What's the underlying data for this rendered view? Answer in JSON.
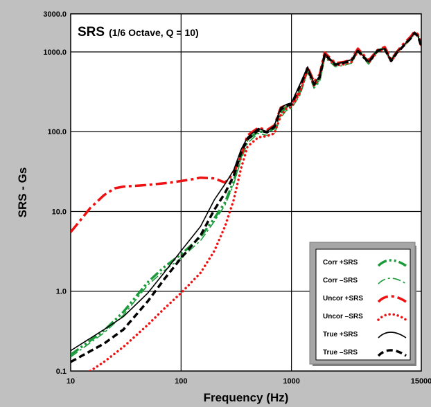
{
  "chart_data": {
    "type": "line",
    "title": "SRS",
    "subtitle": "(1/6 Octave, Q = 10)",
    "xlabel": "Frequency (Hz)",
    "ylabel": "SRS - Gs",
    "x_scale": "log",
    "y_scale": "log",
    "xlim": [
      10,
      15000
    ],
    "ylim": [
      0.1,
      3000
    ],
    "x_ticks": [
      10,
      100,
      1000,
      15000
    ],
    "x_tick_labels": [
      "10",
      "100",
      "1000",
      "15000"
    ],
    "y_ticks": [
      0.1,
      1,
      10,
      100,
      1000,
      3000
    ],
    "y_tick_labels": [
      "0.1",
      "1.0",
      "10.0",
      "100.0",
      "1000.0",
      "3000.0"
    ],
    "grid": true,
    "legend_position": "bottom-right",
    "series": [
      {
        "name": "Corr +SRS",
        "color": "#1a9a3a",
        "style": "dash-dot-dot",
        "weight": "thick",
        "points": [
          [
            10,
            0.16
          ],
          [
            20,
            0.32
          ],
          [
            30,
            0.55
          ],
          [
            50,
            1.3
          ],
          [
            70,
            2.0
          ],
          [
            100,
            2.9
          ],
          [
            150,
            4.8
          ],
          [
            200,
            8.2
          ],
          [
            250,
            13
          ],
          [
            300,
            24
          ],
          [
            350,
            50
          ],
          [
            400,
            80
          ],
          [
            500,
            100
          ],
          [
            600,
            100
          ],
          [
            700,
            110
          ],
          [
            800,
            170
          ],
          [
            900,
            205
          ],
          [
            1000,
            215
          ],
          [
            1200,
            320
          ],
          [
            1400,
            600
          ],
          [
            1600,
            380
          ],
          [
            1800,
            450
          ],
          [
            2000,
            920
          ],
          [
            2500,
            700
          ],
          [
            3000,
            720
          ],
          [
            3500,
            760
          ],
          [
            4000,
            1050
          ],
          [
            5000,
            750
          ],
          [
            6000,
            1050
          ],
          [
            7000,
            1100
          ],
          [
            8000,
            780
          ],
          [
            9000,
            1000
          ],
          [
            10000,
            1150
          ],
          [
            12000,
            1500
          ],
          [
            13000,
            1750
          ],
          [
            14000,
            1600
          ],
          [
            15000,
            1200
          ]
        ]
      },
      {
        "name": "Corr –SRS",
        "color": "#1a9a3a",
        "style": "dash-dot",
        "weight": "thin",
        "points": [
          [
            10,
            0.15
          ],
          [
            20,
            0.3
          ],
          [
            30,
            0.5
          ],
          [
            50,
            1.2
          ],
          [
            70,
            1.8
          ],
          [
            100,
            2.6
          ],
          [
            150,
            4.3
          ],
          [
            200,
            7.5
          ],
          [
            250,
            12
          ],
          [
            300,
            22
          ],
          [
            350,
            45
          ],
          [
            400,
            72
          ],
          [
            500,
            95
          ],
          [
            600,
            90
          ],
          [
            700,
            95
          ],
          [
            800,
            150
          ],
          [
            900,
            185
          ],
          [
            1000,
            195
          ],
          [
            1200,
            290
          ],
          [
            1400,
            560
          ],
          [
            1600,
            350
          ],
          [
            1800,
            420
          ],
          [
            2000,
            850
          ],
          [
            2500,
            650
          ],
          [
            3000,
            680
          ],
          [
            3500,
            720
          ],
          [
            4000,
            1000
          ],
          [
            5000,
            700
          ],
          [
            6000,
            1000
          ],
          [
            7000,
            1050
          ],
          [
            8000,
            740
          ],
          [
            9000,
            950
          ],
          [
            10000,
            1100
          ],
          [
            12000,
            1450
          ],
          [
            13000,
            1700
          ],
          [
            14000,
            1550
          ],
          [
            15000,
            1150
          ]
        ]
      },
      {
        "name": "Uncor +SRS",
        "color": "#ee1111",
        "style": "dash-dot",
        "weight": "thick",
        "points": [
          [
            10,
            5.5
          ],
          [
            12,
            7.5
          ],
          [
            15,
            11
          ],
          [
            20,
            16
          ],
          [
            25,
            19.5
          ],
          [
            30,
            20.5
          ],
          [
            50,
            21.5
          ],
          [
            80,
            23
          ],
          [
            120,
            25
          ],
          [
            150,
            26.5
          ],
          [
            200,
            26
          ],
          [
            250,
            23
          ],
          [
            300,
            30
          ],
          [
            350,
            50
          ],
          [
            400,
            90
          ],
          [
            500,
            112
          ],
          [
            600,
            105
          ],
          [
            700,
            120
          ],
          [
            800,
            200
          ],
          [
            900,
            215
          ],
          [
            1000,
            220
          ],
          [
            1200,
            330
          ],
          [
            1400,
            650
          ],
          [
            1600,
            420
          ],
          [
            1800,
            520
          ],
          [
            2000,
            980
          ],
          [
            2500,
            720
          ],
          [
            3000,
            750
          ],
          [
            3500,
            800
          ],
          [
            4000,
            1100
          ],
          [
            5000,
            780
          ],
          [
            6000,
            1050
          ],
          [
            7000,
            1150
          ],
          [
            8000,
            800
          ],
          [
            9000,
            1000
          ],
          [
            10000,
            1200
          ],
          [
            12000,
            1550
          ],
          [
            13000,
            1800
          ],
          [
            14000,
            1650
          ],
          [
            15000,
            1200
          ]
        ]
      },
      {
        "name": "Uncor –SRS",
        "color": "#ee1111",
        "style": "dotted",
        "weight": "thick",
        "points": [
          [
            15,
            0.1
          ],
          [
            20,
            0.13
          ],
          [
            30,
            0.2
          ],
          [
            50,
            0.38
          ],
          [
            70,
            0.6
          ],
          [
            100,
            0.95
          ],
          [
            150,
            1.7
          ],
          [
            200,
            3.2
          ],
          [
            250,
            6.5
          ],
          [
            300,
            14
          ],
          [
            350,
            35
          ],
          [
            400,
            65
          ],
          [
            500,
            85
          ],
          [
            600,
            88
          ],
          [
            700,
            95
          ],
          [
            800,
            160
          ],
          [
            900,
            195
          ],
          [
            1000,
            205
          ],
          [
            1200,
            310
          ],
          [
            1400,
            600
          ],
          [
            1600,
            380
          ],
          [
            1800,
            470
          ],
          [
            2000,
            900
          ],
          [
            2500,
            680
          ],
          [
            3000,
            700
          ],
          [
            3500,
            750
          ],
          [
            4000,
            1020
          ],
          [
            5000,
            730
          ],
          [
            6000,
            1000
          ],
          [
            7000,
            1080
          ],
          [
            8000,
            760
          ],
          [
            9000,
            960
          ],
          [
            10000,
            1120
          ],
          [
            12000,
            1480
          ],
          [
            13000,
            1750
          ],
          [
            14000,
            1600
          ],
          [
            15000,
            1150
          ]
        ]
      },
      {
        "name": "True +SRS",
        "color": "#000000",
        "style": "solid",
        "weight": "thin",
        "points": [
          [
            10,
            0.18
          ],
          [
            20,
            0.33
          ],
          [
            30,
            0.48
          ],
          [
            50,
            0.95
          ],
          [
            70,
            1.7
          ],
          [
            100,
            3.2
          ],
          [
            150,
            6.5
          ],
          [
            200,
            14
          ],
          [
            250,
            22
          ],
          [
            300,
            33
          ],
          [
            350,
            60
          ],
          [
            400,
            85
          ],
          [
            500,
            110
          ],
          [
            600,
            100
          ],
          [
            700,
            120
          ],
          [
            800,
            200
          ],
          [
            900,
            220
          ],
          [
            1000,
            230
          ],
          [
            1200,
            400
          ],
          [
            1400,
            650
          ],
          [
            1600,
            400
          ],
          [
            1800,
            500
          ],
          [
            2000,
            950
          ],
          [
            2500,
            700
          ],
          [
            3000,
            750
          ],
          [
            3500,
            800
          ],
          [
            4000,
            1050
          ],
          [
            5000,
            750
          ],
          [
            6000,
            1050
          ],
          [
            7000,
            1100
          ],
          [
            8000,
            780
          ],
          [
            9000,
            1000
          ],
          [
            10000,
            1150
          ],
          [
            12000,
            1500
          ],
          [
            13000,
            1750
          ],
          [
            14000,
            1600
          ],
          [
            15000,
            1200
          ]
        ]
      },
      {
        "name": "True –SRS",
        "color": "#000000",
        "style": "dashed",
        "weight": "thick",
        "points": [
          [
            10,
            0.13
          ],
          [
            20,
            0.22
          ],
          [
            30,
            0.33
          ],
          [
            50,
            0.75
          ],
          [
            70,
            1.4
          ],
          [
            100,
            2.6
          ],
          [
            150,
            5.0
          ],
          [
            200,
            10.5
          ],
          [
            250,
            17
          ],
          [
            300,
            28
          ],
          [
            350,
            55
          ],
          [
            400,
            80
          ],
          [
            500,
            105
          ],
          [
            600,
            98
          ],
          [
            700,
            115
          ],
          [
            800,
            190
          ],
          [
            900,
            210
          ],
          [
            1000,
            220
          ],
          [
            1200,
            380
          ],
          [
            1400,
            620
          ],
          [
            1600,
            390
          ],
          [
            1800,
            480
          ],
          [
            2000,
            930
          ],
          [
            2500,
            690
          ],
          [
            3000,
            730
          ],
          [
            3500,
            780
          ],
          [
            4000,
            1030
          ],
          [
            5000,
            740
          ],
          [
            6000,
            1030
          ],
          [
            7000,
            1080
          ],
          [
            8000,
            770
          ],
          [
            9000,
            980
          ],
          [
            10000,
            1130
          ],
          [
            12000,
            1480
          ],
          [
            13000,
            1720
          ],
          [
            14000,
            1580
          ],
          [
            15000,
            1180
          ]
        ]
      }
    ]
  }
}
